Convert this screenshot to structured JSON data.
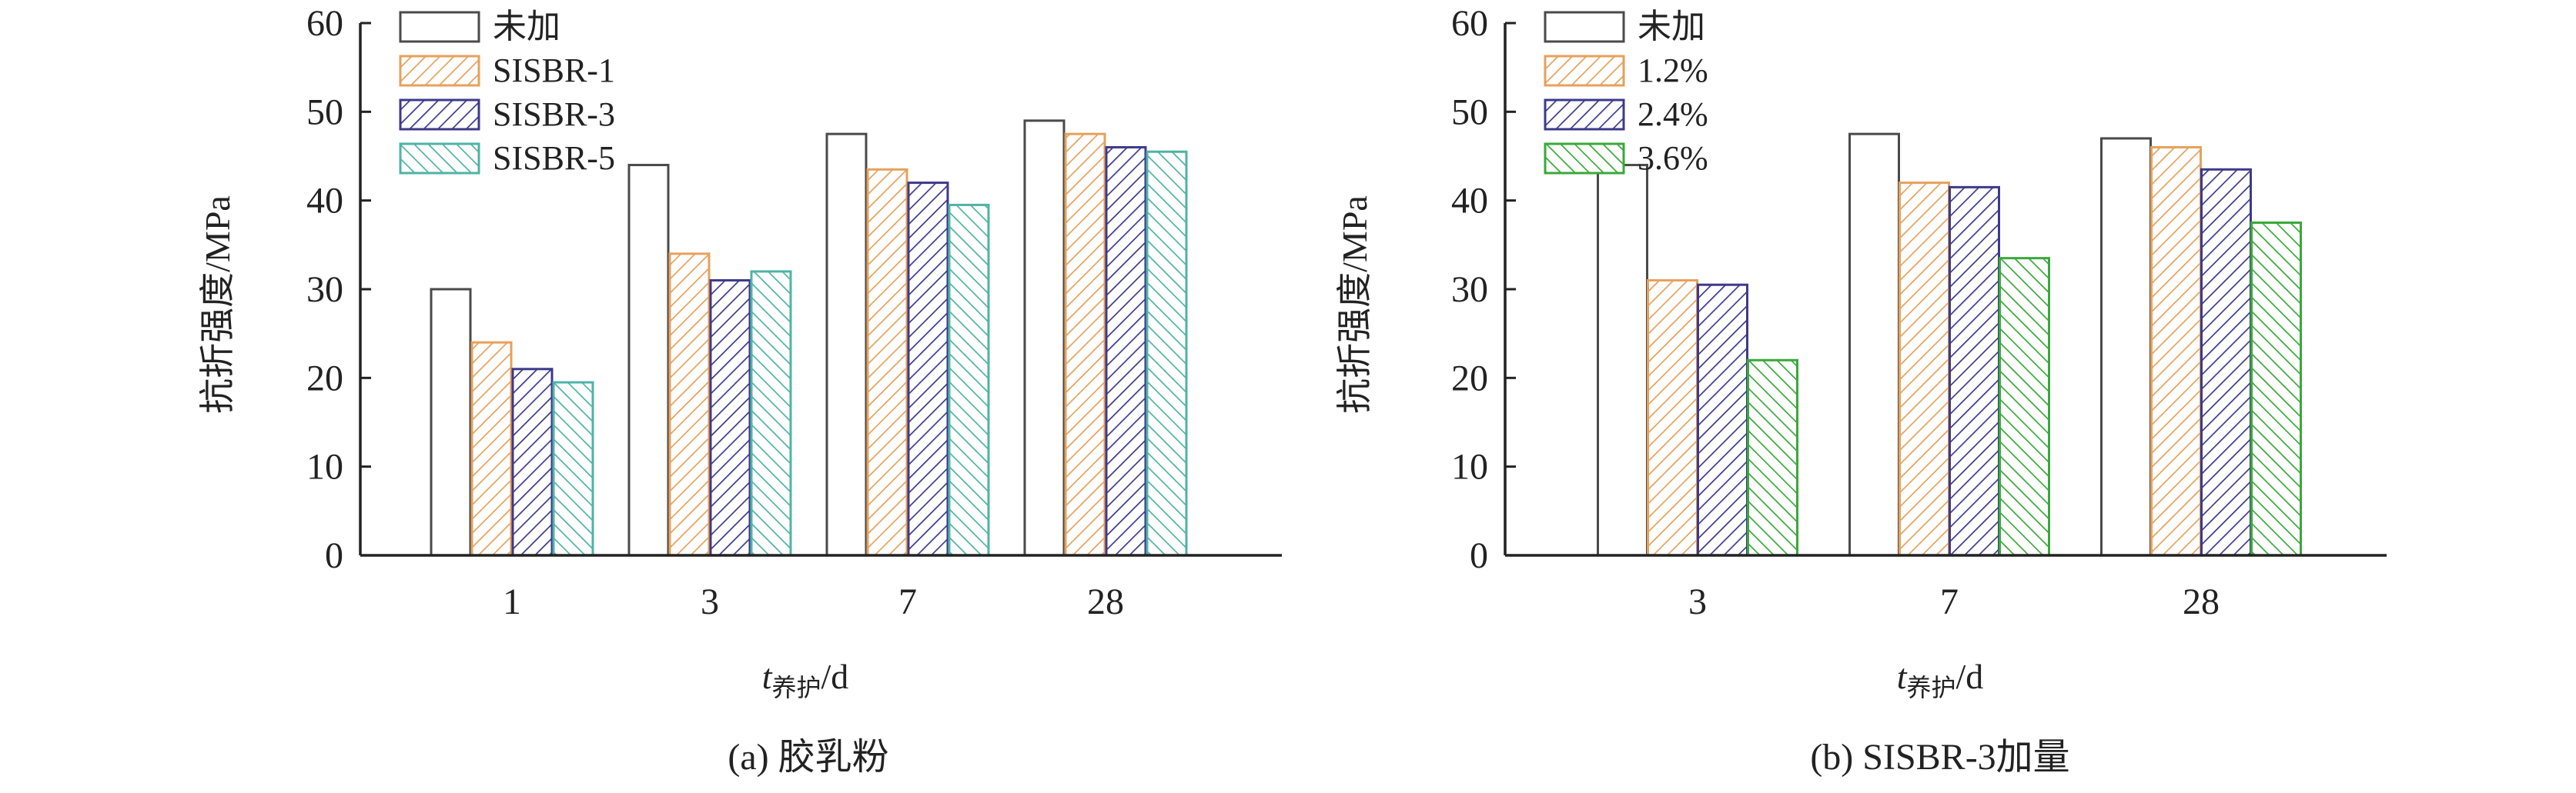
{
  "figure": {
    "colors": {
      "base": "#4a4a4a",
      "orange": "#e6a15c",
      "purple": "#3d3a8a",
      "teal": "#4fb3a5",
      "green": "#3aa83a",
      "axis": "#222222"
    }
  },
  "chart_data": [
    {
      "type": "bar",
      "caption": "(a) 胶乳粉",
      "ylabel": "抗折强度/MPa",
      "xlabel_main": "t",
      "xlabel_sub": "养护",
      "xlabel_unit": "/d",
      "ylim": [
        0,
        60
      ],
      "yticks": [
        "0",
        "10",
        "20",
        "30",
        "40",
        "50",
        "60"
      ],
      "categories": [
        "1",
        "3",
        "7",
        "28"
      ],
      "legend_position": "top-left",
      "series": [
        {
          "name": "未加",
          "values": [
            30,
            44,
            47.5,
            49
          ],
          "color": "#4a4a4a",
          "hatch": "none"
        },
        {
          "name": "SISBR-1",
          "values": [
            24,
            34,
            43.5,
            47.5
          ],
          "color": "#e6a15c",
          "hatch": "fwd"
        },
        {
          "name": "SISBR-3",
          "values": [
            21,
            31,
            42,
            46
          ],
          "color": "#3d3a8a",
          "hatch": "fwd"
        },
        {
          "name": "SISBR-5",
          "values": [
            19.5,
            32,
            39.5,
            45.5
          ],
          "color": "#4fb3a5",
          "hatch": "back"
        }
      ]
    },
    {
      "type": "bar",
      "caption": "(b) SISBR-3加量",
      "ylabel": "抗折强度/MPa",
      "xlabel_main": "t",
      "xlabel_sub": "养护",
      "xlabel_unit": "/d",
      "ylim": [
        0,
        60
      ],
      "yticks": [
        "0",
        "10",
        "20",
        "30",
        "40",
        "50",
        "60"
      ],
      "categories": [
        "3",
        "7",
        "28"
      ],
      "legend_position": "top-left",
      "series": [
        {
          "name": "未加",
          "values": [
            44,
            47.5,
            47
          ],
          "color": "#4a4a4a",
          "hatch": "none"
        },
        {
          "name": "1.2%",
          "values": [
            31,
            42,
            46
          ],
          "color": "#e6a15c",
          "hatch": "fwd"
        },
        {
          "name": "2.4%",
          "values": [
            30.5,
            41.5,
            43.5
          ],
          "color": "#3d3a8a",
          "hatch": "fwd"
        },
        {
          "name": "3.6%",
          "values": [
            22,
            33.5,
            37.5
          ],
          "color": "#3aa83a",
          "hatch": "back"
        }
      ]
    }
  ]
}
